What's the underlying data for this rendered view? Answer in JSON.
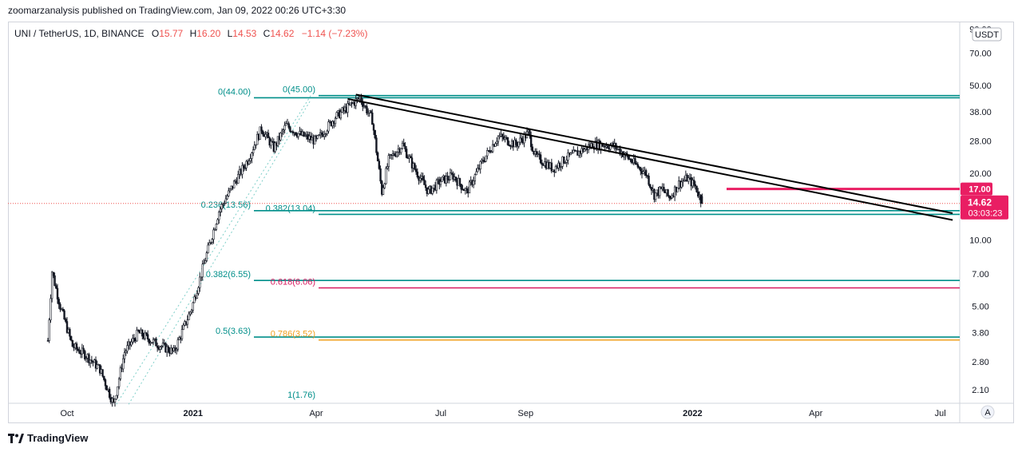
{
  "header": {
    "text": "zoomarzanalysis published on TradingView.com, Jan 09, 2022 00:26 UTC+3:30"
  },
  "legend": {
    "symbol": "UNI / TetherUS, 1D, BINANCE",
    "o_label": "O",
    "o_value": "15.77",
    "h_label": "H",
    "h_value": "16.20",
    "l_label": "L",
    "l_value": "14.53",
    "c_label": "C",
    "c_value": "14.62",
    "change": "−1.14 (−7.23%)"
  },
  "currency_button": "USDT",
  "auto_button": "A",
  "footer": {
    "brand": "TradingView",
    "logo_icon": "tradingview-logo-icon"
  },
  "colors": {
    "up": "#26a69a",
    "down": "#ef5350",
    "candle": "#131722",
    "fib_teal": "#008f8a",
    "fib_pink": "#d81b60",
    "fib_orange": "#f0a020",
    "trendline": "#000000",
    "grid_axis": "#d1d4dc",
    "price_tag": "#e91e63"
  },
  "chart_data": {
    "type": "candlestick",
    "title": "UNI / TetherUS, 1D, BINANCE",
    "y_scale": "log",
    "ylim": [
      1.85,
      95
    ],
    "y_ticks": [
      {
        "v": 90,
        "label": "90.00"
      },
      {
        "v": 70,
        "label": "70.00"
      },
      {
        "v": 50,
        "label": "50.00"
      },
      {
        "v": 38,
        "label": "38.00"
      },
      {
        "v": 28,
        "label": "28.00"
      },
      {
        "v": 20,
        "label": "20.00"
      },
      {
        "v": 10,
        "label": "10.00"
      },
      {
        "v": 7,
        "label": "7.00"
      },
      {
        "v": 5,
        "label": "5.00"
      },
      {
        "v": 3.8,
        "label": "3.80"
      },
      {
        "v": 2.8,
        "label": "2.80"
      },
      {
        "v": 2.1,
        "label": "2.10"
      }
    ],
    "x_ticks": [
      {
        "date": "2020-10-01",
        "label": "Oct",
        "bold": false
      },
      {
        "date": "2021-01-01",
        "label": "2021",
        "bold": true
      },
      {
        "date": "2021-04-01",
        "label": "Apr",
        "bold": false
      },
      {
        "date": "2021-07-01",
        "label": "Jul",
        "bold": false
      },
      {
        "date": "2021-09-01",
        "label": "Sep",
        "bold": false
      },
      {
        "date": "2022-01-01",
        "label": "2022",
        "bold": true
      },
      {
        "date": "2022-04-01",
        "label": "Apr",
        "bold": false
      },
      {
        "date": "2022-07-01",
        "label": "Jul",
        "bold": false
      }
    ],
    "xlim": [
      "2020-08-20",
      "2022-07-14"
    ],
    "ohlc_last": {
      "open": 15.77,
      "high": 16.2,
      "low": 14.53,
      "close": 14.62,
      "change": -1.14,
      "change_pct": -7.23
    },
    "price_path": [
      [
        "2020-09-17",
        3.5
      ],
      [
        "2020-09-20",
        7.2
      ],
      [
        "2020-09-26",
        5.0
      ],
      [
        "2020-10-05",
        3.3
      ],
      [
        "2020-10-15",
        3.0
      ],
      [
        "2020-10-25",
        2.6
      ],
      [
        "2020-11-04",
        1.8
      ],
      [
        "2020-11-12",
        3.1
      ],
      [
        "2020-11-22",
        3.8
      ],
      [
        "2020-12-05",
        3.4
      ],
      [
        "2020-12-18",
        3.1
      ],
      [
        "2020-12-31",
        4.9
      ],
      [
        "2021-01-10",
        8.2
      ],
      [
        "2021-01-20",
        13.5
      ],
      [
        "2021-02-01",
        18.5
      ],
      [
        "2021-02-10",
        23.0
      ],
      [
        "2021-02-20",
        32.0
      ],
      [
        "2021-03-01",
        26.0
      ],
      [
        "2021-03-10",
        33.0
      ],
      [
        "2021-03-20",
        30.0
      ],
      [
        "2021-04-01",
        28.0
      ],
      [
        "2021-04-15",
        36.0
      ],
      [
        "2021-05-03",
        44.0
      ],
      [
        "2021-05-12",
        35.0
      ],
      [
        "2021-05-19",
        16.5
      ],
      [
        "2021-05-24",
        23.0
      ],
      [
        "2021-06-03",
        27.0
      ],
      [
        "2021-06-10",
        22.0
      ],
      [
        "2021-06-22",
        16.5
      ],
      [
        "2021-07-01",
        18.5
      ],
      [
        "2021-07-10",
        19.5
      ],
      [
        "2021-07-20",
        16.5
      ],
      [
        "2021-08-01",
        23.0
      ],
      [
        "2021-08-12",
        29.5
      ],
      [
        "2021-08-25",
        27.0
      ],
      [
        "2021-09-03",
        30.5
      ],
      [
        "2021-09-08",
        24.0
      ],
      [
        "2021-09-21",
        21.0
      ],
      [
        "2021-10-01",
        23.5
      ],
      [
        "2021-10-10",
        25.0
      ],
      [
        "2021-10-20",
        27.0
      ],
      [
        "2021-10-28",
        27.0
      ],
      [
        "2021-11-05",
        26.5
      ],
      [
        "2021-11-10",
        25.0
      ],
      [
        "2021-11-20",
        22.0
      ],
      [
        "2021-11-28",
        20.0
      ],
      [
        "2021-12-04",
        16.0
      ],
      [
        "2021-12-10",
        17.0
      ],
      [
        "2021-12-15",
        15.5
      ],
      [
        "2021-12-22",
        18.0
      ],
      [
        "2021-12-28",
        19.0
      ],
      [
        "2022-01-03",
        17.5
      ],
      [
        "2022-01-08",
        14.62
      ]
    ],
    "current_price": {
      "value": 14.62,
      "label": "14.62",
      "countdown": "03:03:23"
    },
    "horizontal_levels": [
      {
        "name": "fib-0-44",
        "value": 44.0,
        "label": "0(44.00)",
        "color": "#008f8a"
      },
      {
        "name": "fib-0-45",
        "value": 45.0,
        "label": "0(45.00)",
        "color": "#008f8a"
      },
      {
        "name": "fib-0236-1356",
        "value": 13.56,
        "label": "0.236(13.56)",
        "color": "#008f8a"
      },
      {
        "name": "fib-0382-1304",
        "value": 13.04,
        "label": "0.382(13.04)",
        "color": "#008f8a"
      },
      {
        "name": "fib-0382-655",
        "value": 6.55,
        "label": "0.382(6.55)",
        "color": "#008f8a"
      },
      {
        "name": "fib-0618-606",
        "value": 6.06,
        "label": "0.618(6.06)",
        "color": "#d81b60"
      },
      {
        "name": "fib-05-363",
        "value": 3.63,
        "label": "0.5(3.63)",
        "color": "#008f8a"
      },
      {
        "name": "fib-0786-352",
        "value": 3.52,
        "label": "0.786(3.52)",
        "color": "#f0a020"
      },
      {
        "name": "fib-1-176",
        "value": 1.76,
        "label": "1(1.76)",
        "color": "#008f8a"
      },
      {
        "name": "resistance-17",
        "value": 17.0,
        "label": "17.00",
        "color": "#e91e63"
      }
    ],
    "trendlines": [
      {
        "from": [
          "2021-04-24",
          43.5
        ],
        "to": [
          "2022-07-10",
          12.3
        ]
      },
      {
        "from": [
          "2021-04-30",
          45.5
        ],
        "to": [
          "2022-07-10",
          13.2
        ]
      }
    ],
    "grid": false,
    "legend_position": "top-left"
  }
}
